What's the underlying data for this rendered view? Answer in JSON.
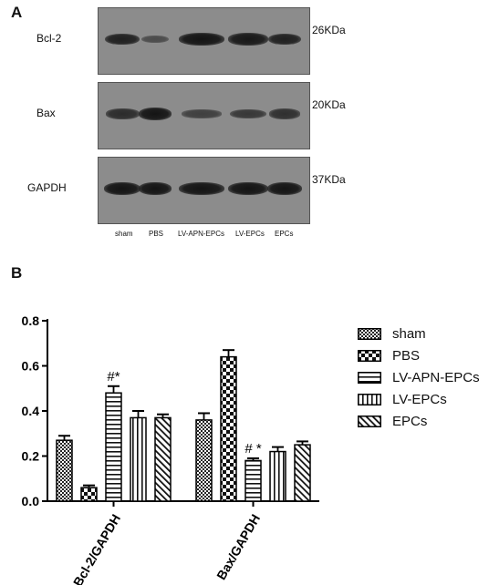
{
  "panel_a": {
    "letter": "A",
    "blots": [
      {
        "label": "Bcl-2",
        "size": "26KDa",
        "intensities": [
          0.85,
          0.3,
          1.0,
          0.95,
          0.85
        ]
      },
      {
        "label": "Bax",
        "size": "20KDa",
        "intensities": [
          0.7,
          1.0,
          0.45,
          0.55,
          0.65
        ]
      },
      {
        "label": "GAPDH",
        "size": "37KDa",
        "intensities": [
          1.0,
          1.0,
          1.0,
          1.0,
          1.0
        ]
      }
    ],
    "lanes": [
      "sham",
      "PBS",
      "LV-APN-EPCs",
      "LV-EPCs",
      "EPCs"
    ]
  },
  "panel_b": {
    "letter": "B"
  },
  "chart_data": {
    "type": "bar",
    "categories": [
      "Bcl-2/GAPDH",
      "Bax/GAPDH"
    ],
    "series": [
      {
        "name": "sham",
        "values": [
          0.27,
          0.36
        ],
        "errors": [
          0.02,
          0.03
        ],
        "pattern": "cross-dense"
      },
      {
        "name": "PBS",
        "values": [
          0.06,
          0.64
        ],
        "errors": [
          0.01,
          0.03
        ],
        "pattern": "checker"
      },
      {
        "name": "LV-APN-EPCs",
        "values": [
          0.48,
          0.18
        ],
        "errors": [
          0.03,
          0.01
        ],
        "pattern": "hstripe"
      },
      {
        "name": "LV-EPCs",
        "values": [
          0.37,
          0.22
        ],
        "errors": [
          0.03,
          0.02
        ],
        "pattern": "vstripe"
      },
      {
        "name": "EPCs",
        "values": [
          0.37,
          0.25
        ],
        "errors": [
          0.015,
          0.015
        ],
        "pattern": "diag"
      }
    ],
    "annotations": [
      {
        "text": "#*",
        "category": 0,
        "series": 2
      },
      {
        "text": "# *",
        "category": 1,
        "series": 2
      }
    ],
    "yticks": [
      "0.0",
      "0.2",
      "0.4",
      "0.6",
      "0.8"
    ],
    "ylim": [
      0,
      0.8
    ],
    "legend": "right",
    "grid": false
  }
}
